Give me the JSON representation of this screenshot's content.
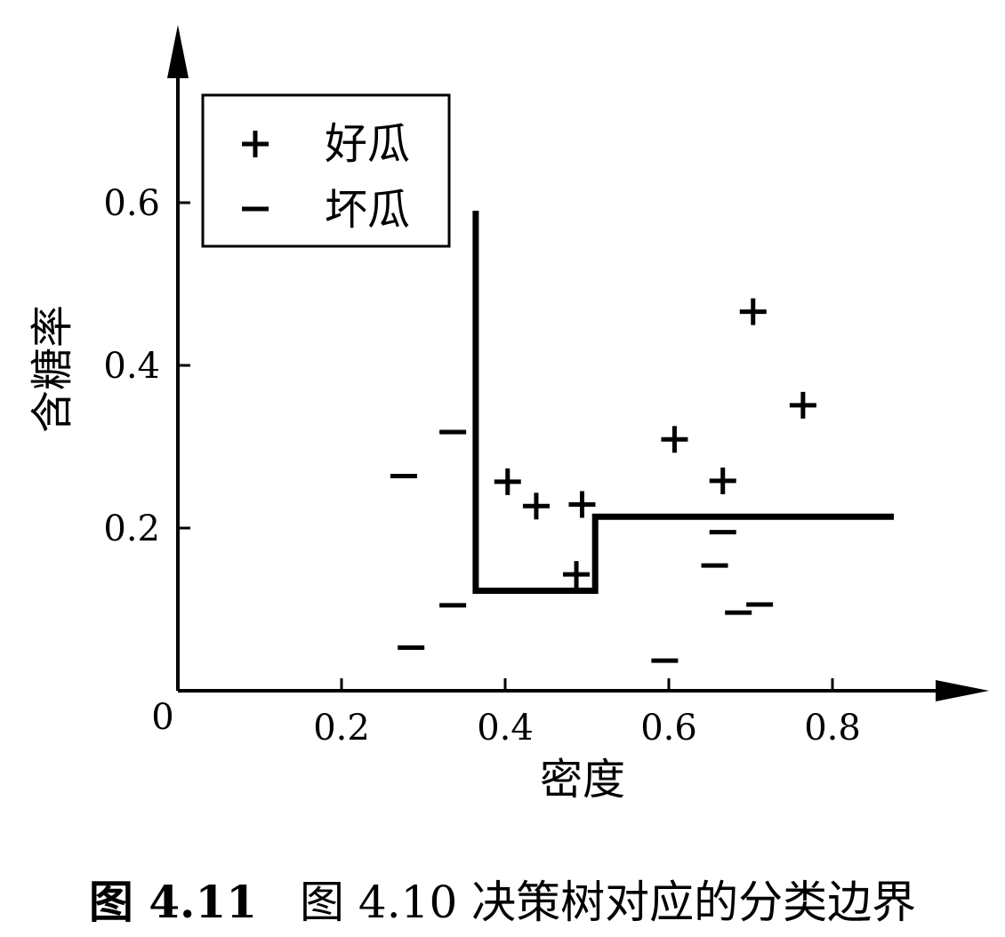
{
  "chart_data": {
    "type": "scatter",
    "xlabel": "密度",
    "ylabel": "含糖率",
    "origin_label": "0",
    "x_ticks": [
      0.2,
      0.4,
      0.6,
      0.8
    ],
    "y_ticks": [
      0.2,
      0.4,
      0.6
    ],
    "xlim": [
      0,
      0.98
    ],
    "ylim": [
      0,
      0.75
    ],
    "legend": {
      "position": "top-left",
      "entries": [
        {
          "symbol": "+",
          "label": "好瓜"
        },
        {
          "symbol": "−",
          "label": "坏瓜"
        }
      ]
    },
    "series": [
      {
        "name": "好瓜",
        "marker": "+",
        "points": [
          {
            "x": 0.403,
            "y": 0.257
          },
          {
            "x": 0.438,
            "y": 0.227
          },
          {
            "x": 0.487,
            "y": 0.143
          },
          {
            "x": 0.494,
            "y": 0.229
          },
          {
            "x": 0.607,
            "y": 0.309
          },
          {
            "x": 0.666,
            "y": 0.258
          },
          {
            "x": 0.703,
            "y": 0.466
          },
          {
            "x": 0.764,
            "y": 0.351
          }
        ]
      },
      {
        "name": "坏瓜",
        "marker": "−",
        "points": [
          {
            "x": 0.276,
            "y": 0.264
          },
          {
            "x": 0.285,
            "y": 0.053
          },
          {
            "x": 0.336,
            "y": 0.318
          },
          {
            "x": 0.336,
            "y": 0.105
          },
          {
            "x": 0.595,
            "y": 0.037
          },
          {
            "x": 0.656,
            "y": 0.154
          },
          {
            "x": 0.666,
            "y": 0.195
          },
          {
            "x": 0.685,
            "y": 0.096
          },
          {
            "x": 0.711,
            "y": 0.106
          }
        ]
      }
    ],
    "decision_boundary": [
      {
        "x": 0.364,
        "y": 0.59
      },
      {
        "x": 0.364,
        "y": 0.123
      },
      {
        "x": 0.51,
        "y": 0.123
      },
      {
        "x": 0.51,
        "y": 0.214
      },
      {
        "x": 0.875,
        "y": 0.214
      }
    ]
  },
  "caption": {
    "figure_label": "图 4.11",
    "text": "图 4.10 决策树对应的分类边界"
  }
}
